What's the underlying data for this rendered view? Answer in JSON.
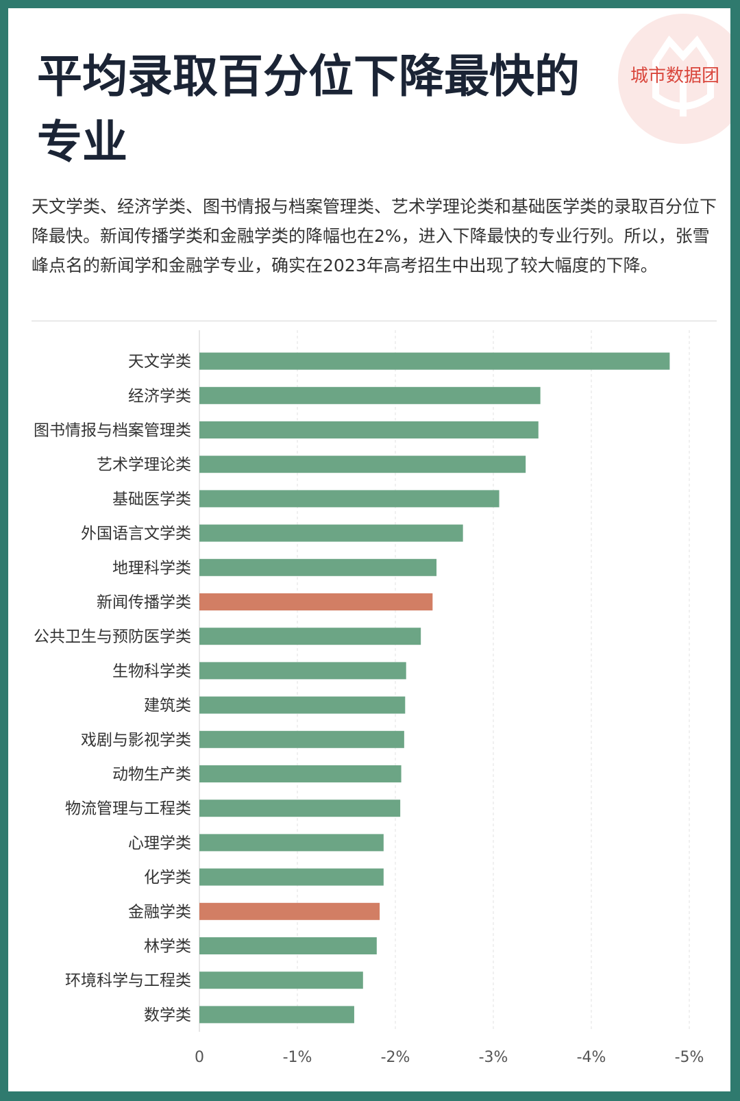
{
  "header": {
    "title": "平均录取百分位下降最快的专业",
    "brand": "城市数据团"
  },
  "description": "天文学类、经济学类、图书情报与档案管理类、艺术学理论类和基础医学类的录取百分位下降最快。新闻传播学类和金融学类的降幅也在2%，进入下降最快的专业行列。所以，张雪峰点名的新闻学和金融学专业，确实在2023年高考招生中出现了较大幅度的下降。",
  "colors": {
    "default_bar": "#6ca585",
    "highlight_bar": "#d27e64",
    "background_frame": "#2f7a6e"
  },
  "chart_data": {
    "type": "bar",
    "orientation": "horizontal",
    "categories": [
      "天文学类",
      "经济学类",
      "图书情报与档案管理类",
      "艺术学理论类",
      "基础医学类",
      "外国语言文学类",
      "地理科学类",
      "新闻传播学类",
      "公共卫生与预防医学类",
      "生物科学类",
      "建筑类",
      "戏剧与影视学类",
      "动物生产类",
      "物流管理与工程类",
      "心理学类",
      "化学类",
      "金融学类",
      "林学类",
      "环境科学与工程类",
      "数学类"
    ],
    "values": [
      -4.8,
      -3.48,
      -3.46,
      -3.33,
      -3.06,
      -2.69,
      -2.42,
      -2.38,
      -2.26,
      -2.11,
      -2.1,
      -2.09,
      -2.06,
      -2.05,
      -1.88,
      -1.88,
      -1.84,
      -1.81,
      -1.67,
      -1.58
    ],
    "highlighted": [
      "新闻传播学类",
      "金融学类"
    ],
    "xlim": [
      0,
      -5
    ],
    "ticks": [
      0,
      -1,
      -2,
      -3,
      -4,
      -5
    ],
    "tick_labels": [
      "0",
      "-1%",
      "-2%",
      "-3%",
      "-4%",
      "-5%"
    ],
    "grid": true,
    "title": "",
    "xlabel": "",
    "ylabel": ""
  }
}
